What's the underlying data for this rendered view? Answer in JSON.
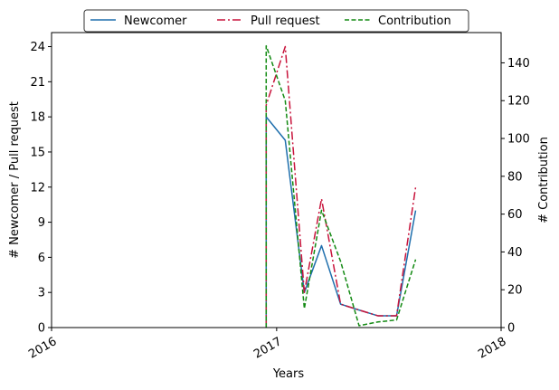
{
  "chart_data": {
    "type": "line",
    "xlabel": "Years",
    "ylabel_left": "# Newcomer / Pull request",
    "ylabel_right": "# Contribution",
    "x_ticks": [
      "2016",
      "2017",
      "2018"
    ],
    "y_left_ticks": [
      0,
      3,
      6,
      9,
      12,
      15,
      18,
      21,
      24
    ],
    "y_right_ticks": [
      0,
      20,
      40,
      60,
      80,
      100,
      120,
      140
    ],
    "xlim": [
      "2016-01-01",
      "2018-01-01"
    ],
    "ylim_left": [
      0,
      25.2
    ],
    "ylim_right": [
      0,
      156
    ],
    "legend_position": "top-center",
    "grid": false,
    "series": [
      {
        "name": "Newcomer",
        "axis": "left",
        "color": "#1f6fad",
        "line_style": "solid",
        "points": [
          [
            "2016-12-15",
            0
          ],
          [
            "2016-12-15",
            18
          ],
          [
            "2017-01-15",
            16
          ],
          [
            "2017-02-15",
            3
          ],
          [
            "2017-03-15",
            7
          ],
          [
            "2017-04-15",
            2
          ],
          [
            "2017-05-15",
            1.5
          ],
          [
            "2017-06-15",
            1
          ],
          [
            "2017-07-15",
            1
          ],
          [
            "2017-08-15",
            10
          ]
        ]
      },
      {
        "name": "Pull request",
        "axis": "left",
        "color": "#c8143c",
        "line_style": "dashdot",
        "points": [
          [
            "2016-12-15",
            0
          ],
          [
            "2016-12-15",
            19
          ],
          [
            "2017-01-15",
            24
          ],
          [
            "2017-02-15",
            3
          ],
          [
            "2017-03-15",
            11
          ],
          [
            "2017-04-15",
            2
          ],
          [
            "2017-05-15",
            1.5
          ],
          [
            "2017-06-15",
            1
          ],
          [
            "2017-07-15",
            1
          ],
          [
            "2017-08-15",
            12
          ]
        ]
      },
      {
        "name": "Contribution",
        "axis": "right",
        "color": "#138a13",
        "line_style": "dashed",
        "points": [
          [
            "2016-12-15",
            0
          ],
          [
            "2016-12-15",
            149
          ],
          [
            "2017-01-15",
            120
          ],
          [
            "2017-02-15",
            10
          ],
          [
            "2017-03-15",
            62
          ],
          [
            "2017-04-15",
            35
          ],
          [
            "2017-05-15",
            1
          ],
          [
            "2017-06-15",
            3
          ],
          [
            "2017-07-15",
            4
          ],
          [
            "2017-08-15",
            36
          ]
        ]
      }
    ]
  }
}
